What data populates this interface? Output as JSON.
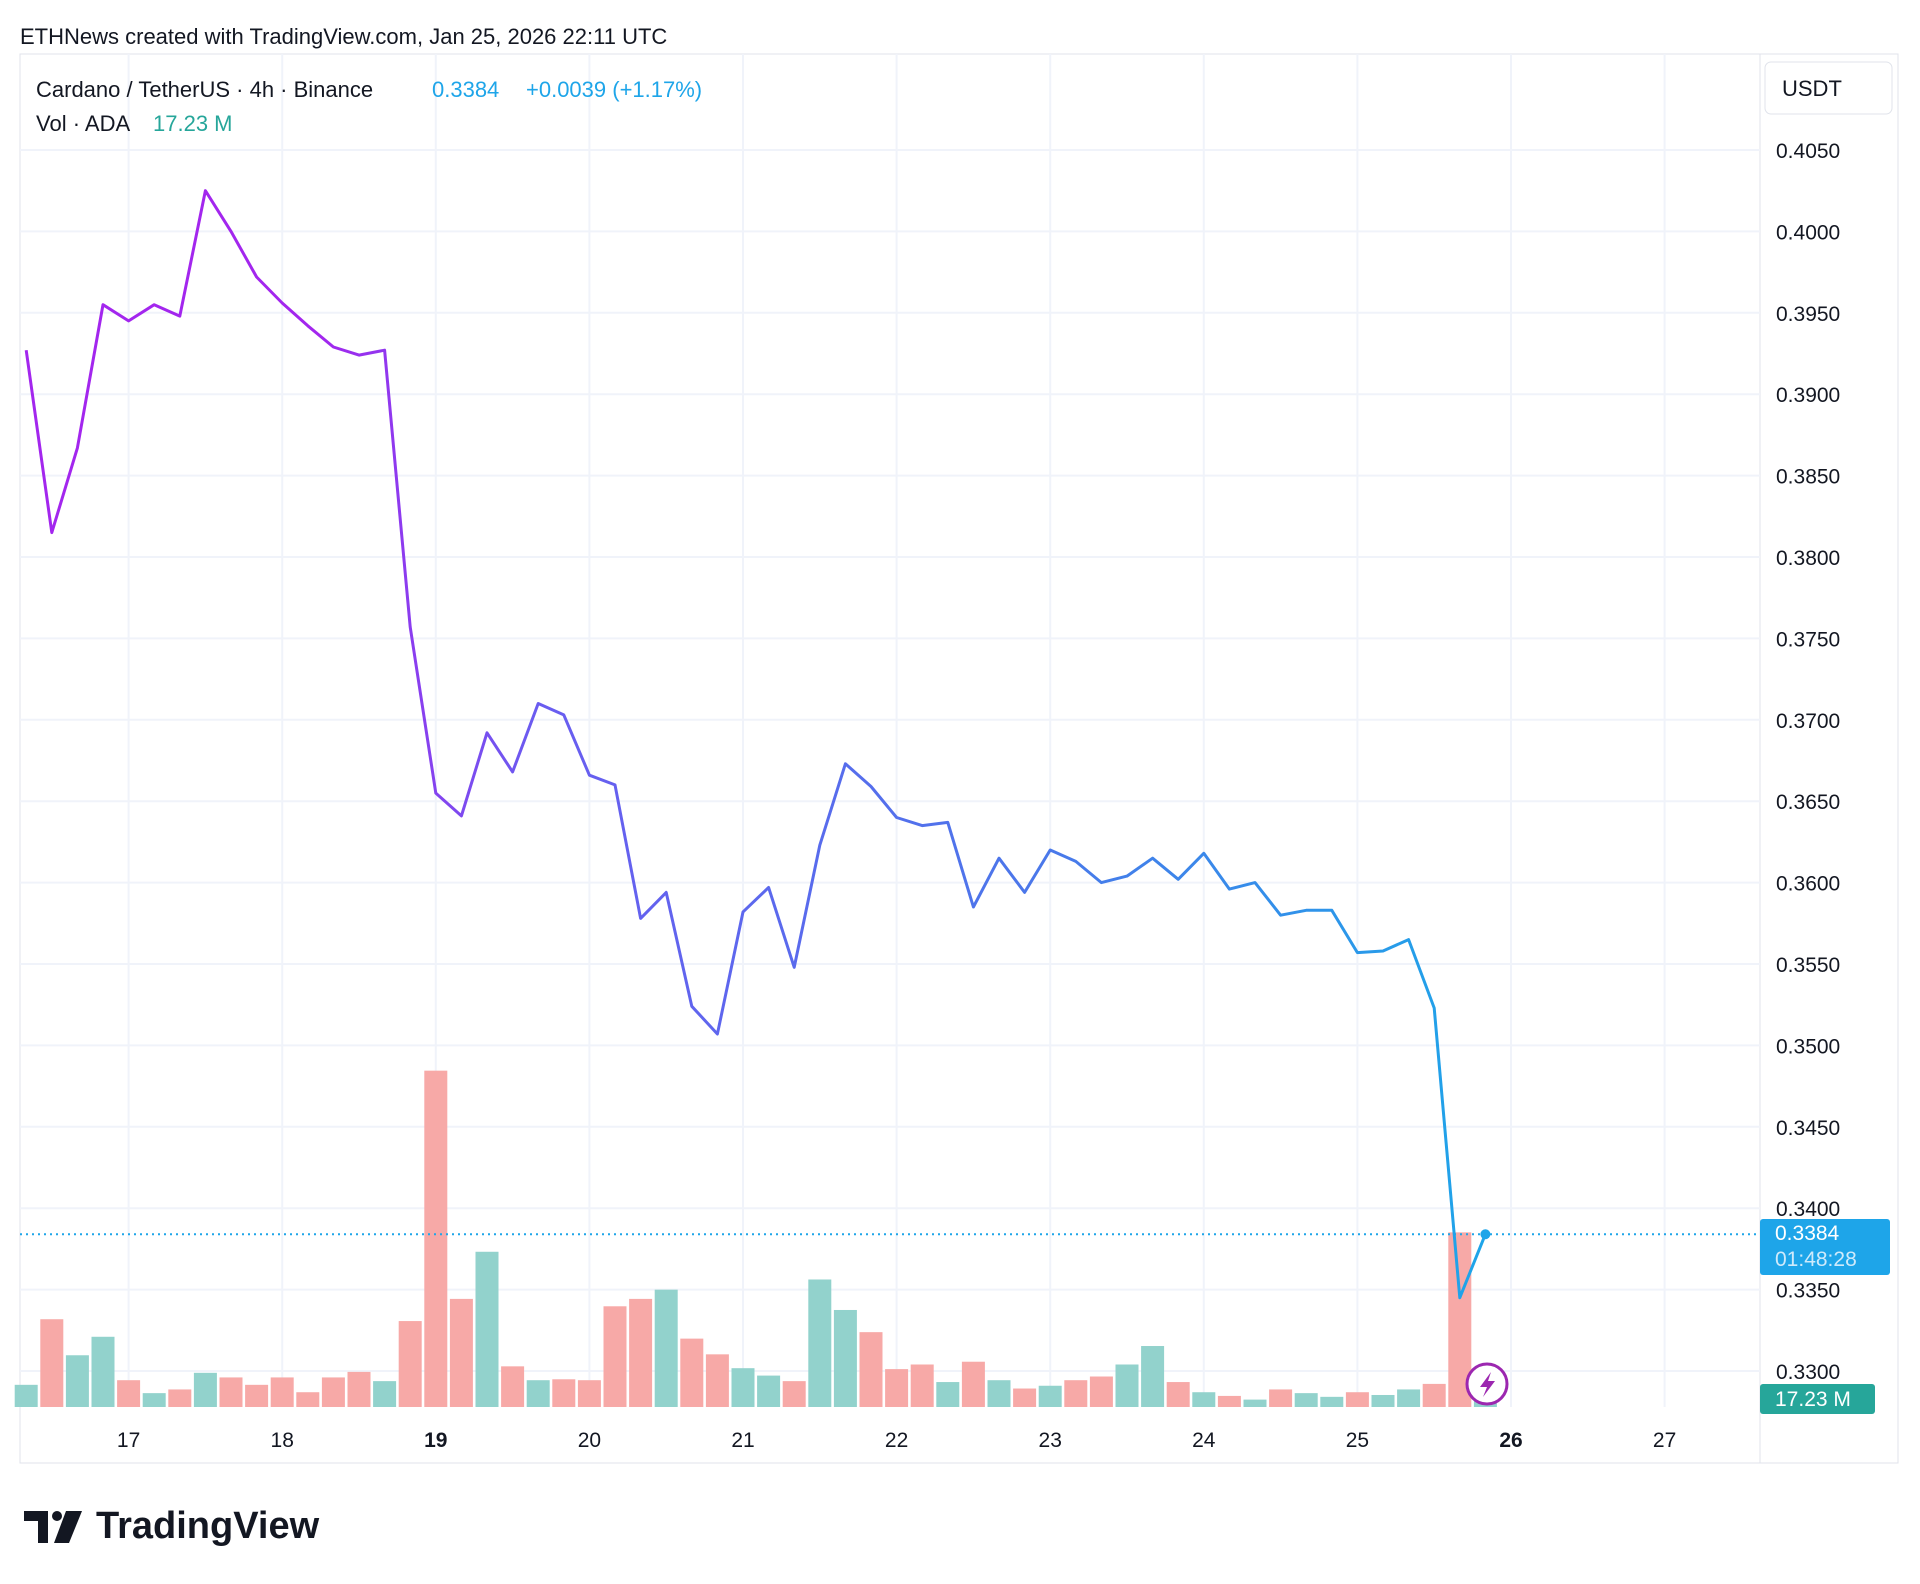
{
  "header": {
    "caption": "ETHNews created with TradingView.com, Jan 25, 2026 22:11 UTC"
  },
  "legend": {
    "symbol": "Cardano / TetherUS · 4h · Binance",
    "price": "0.3384",
    "change": "+0.0039 (+1.17%)",
    "vol_label": "Vol · ADA",
    "vol_value": "17.23 M"
  },
  "currency_button": "USDT",
  "price_badge": {
    "price": "0.3384",
    "countdown": "01:48:28"
  },
  "volume_badge": "17.23 M",
  "logo_text": "TradingView",
  "colors": {
    "line_start": "#a326ee",
    "line_end": "#1ea5e9",
    "up": "#92d2cc",
    "down": "#f7a9a7",
    "last": "#1ea5e9",
    "vol_badge": "#26a69a"
  },
  "chart_data": {
    "type": "line",
    "title": "Cardano / TetherUS · 4h · Binance",
    "xlabel": "",
    "ylabel": "USDT",
    "ylim": [
      0.33,
      0.405
    ],
    "y_ticks": [
      "0.4050",
      "0.4000",
      "0.3950",
      "0.3900",
      "0.3850",
      "0.3800",
      "0.3750",
      "0.3700",
      "0.3650",
      "0.3600",
      "0.3550",
      "0.3500",
      "0.3450",
      "0.3400",
      "0.3350",
      "0.3300"
    ],
    "x_ticks": [
      {
        "label": "17",
        "bold": false
      },
      {
        "label": "18",
        "bold": false
      },
      {
        "label": "19",
        "bold": true
      },
      {
        "label": "20",
        "bold": false
      },
      {
        "label": "21",
        "bold": false
      },
      {
        "label": "22",
        "bold": false
      },
      {
        "label": "23",
        "bold": false
      },
      {
        "label": "24",
        "bold": false
      },
      {
        "label": "25",
        "bold": false
      },
      {
        "label": "26",
        "bold": true
      },
      {
        "label": "27",
        "bold": false
      }
    ],
    "interval": "4h",
    "start": "Jan 16 08:00",
    "close": [
      0.3927,
      0.3815,
      0.3867,
      0.3955,
      0.3945,
      0.3955,
      0.3948,
      0.4025,
      0.4,
      0.3972,
      0.3956,
      0.3942,
      0.3929,
      0.3924,
      0.3927,
      0.3757,
      0.3655,
      0.3641,
      0.3692,
      0.3668,
      0.371,
      0.3703,
      0.3666,
      0.366,
      0.3578,
      0.3594,
      0.3524,
      0.3507,
      0.3582,
      0.3597,
      0.3548,
      0.3623,
      0.3673,
      0.3659,
      0.364,
      0.3635,
      0.3637,
      0.3585,
      0.3615,
      0.3594,
      0.362,
      0.3613,
      0.36,
      0.3604,
      0.3615,
      0.3602,
      0.3618,
      0.3596,
      0.36,
      0.358,
      0.3583,
      0.3583,
      0.3557,
      0.3558,
      0.3565,
      0.3523,
      0.3345,
      0.3384
    ],
    "volume_M": [
      24,
      95,
      56,
      76,
      29,
      15,
      19,
      37,
      32,
      24,
      32,
      16,
      32,
      38,
      28,
      93,
      364,
      117,
      168,
      44,
      29,
      30,
      29,
      109,
      117,
      127,
      74,
      57,
      42,
      34,
      28,
      138,
      105,
      81,
      41,
      46,
      27,
      49,
      29,
      20,
      23,
      29,
      33,
      46,
      66,
      27,
      16,
      12,
      8,
      19,
      15,
      11,
      16,
      13,
      19,
      25,
      189,
      17.23
    ],
    "volume_up": [
      true,
      false,
      true,
      true,
      false,
      true,
      false,
      true,
      false,
      false,
      false,
      false,
      false,
      false,
      true,
      false,
      false,
      false,
      true,
      false,
      true,
      false,
      false,
      false,
      false,
      true,
      false,
      false,
      true,
      true,
      false,
      true,
      true,
      false,
      false,
      false,
      true,
      false,
      true,
      false,
      true,
      false,
      false,
      true,
      true,
      false,
      true,
      false,
      true,
      false,
      true,
      true,
      false,
      true,
      true,
      false,
      false,
      true
    ],
    "last_price": 0.3384
  }
}
